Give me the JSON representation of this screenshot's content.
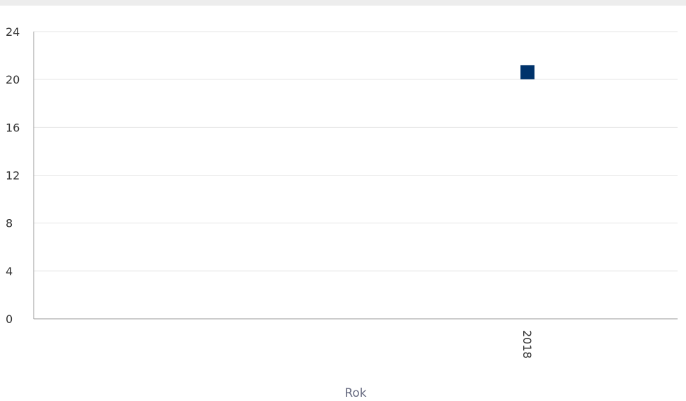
{
  "chart_data": {
    "type": "scatter",
    "title": "",
    "xlabel": "Rok",
    "ylabel": "",
    "categories": [
      "2018"
    ],
    "yticks": [
      0,
      4,
      8,
      12,
      16,
      20,
      24
    ],
    "ylim": [
      0,
      24
    ],
    "grid": true,
    "series": [
      {
        "color": "#00336b",
        "marker": "square",
        "points": [
          {
            "x": "2018",
            "y": 20.6
          }
        ]
      }
    ]
  }
}
